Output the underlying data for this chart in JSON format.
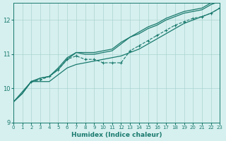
{
  "bg_color": "#d6f0ef",
  "grid_color": "#aad4d0",
  "line_color": "#1a7a6e",
  "xlabel": "Humidex (Indice chaleur)",
  "xlim": [
    0,
    23
  ],
  "ylim": [
    9,
    12.5
  ],
  "yticks": [
    9,
    10,
    11,
    12
  ],
  "xticks": [
    0,
    1,
    2,
    3,
    4,
    5,
    6,
    7,
    8,
    9,
    10,
    11,
    12,
    13,
    14,
    15,
    16,
    17,
    18,
    19,
    20,
    21,
    22,
    23
  ],
  "line_lower": [
    [
      0,
      9.6
    ],
    [
      2,
      10.2
    ],
    [
      3,
      10.2
    ],
    [
      4,
      10.2
    ],
    [
      5,
      10.4
    ],
    [
      6,
      10.6
    ],
    [
      7,
      10.7
    ],
    [
      8,
      10.75
    ],
    [
      9,
      10.8
    ],
    [
      10,
      10.85
    ],
    [
      11,
      10.9
    ],
    [
      12,
      10.95
    ],
    [
      13,
      11.05
    ],
    [
      14,
      11.15
    ],
    [
      15,
      11.3
    ],
    [
      16,
      11.45
    ],
    [
      17,
      11.6
    ],
    [
      18,
      11.75
    ],
    [
      19,
      11.9
    ],
    [
      20,
      12.0
    ],
    [
      21,
      12.1
    ],
    [
      22,
      12.2
    ],
    [
      23,
      12.35
    ]
  ],
  "line_upper1": [
    [
      0,
      9.6
    ],
    [
      1,
      9.85
    ],
    [
      2,
      10.2
    ],
    [
      3,
      10.3
    ],
    [
      4,
      10.35
    ],
    [
      5,
      10.55
    ],
    [
      6,
      10.85
    ],
    [
      7,
      11.05
    ],
    [
      8,
      11.0
    ],
    [
      9,
      11.0
    ],
    [
      10,
      11.05
    ],
    [
      11,
      11.1
    ],
    [
      12,
      11.3
    ],
    [
      13,
      11.5
    ],
    [
      14,
      11.6
    ],
    [
      15,
      11.75
    ],
    [
      16,
      11.85
    ],
    [
      17,
      12.0
    ],
    [
      18,
      12.1
    ],
    [
      19,
      12.2
    ],
    [
      20,
      12.25
    ],
    [
      21,
      12.3
    ],
    [
      22,
      12.45
    ],
    [
      23,
      12.55
    ]
  ],
  "line_upper2": [
    [
      0,
      9.6
    ],
    [
      1,
      9.85
    ],
    [
      2,
      10.2
    ],
    [
      3,
      10.3
    ],
    [
      4,
      10.35
    ],
    [
      5,
      10.6
    ],
    [
      6,
      10.9
    ],
    [
      7,
      11.05
    ],
    [
      8,
      11.05
    ],
    [
      9,
      11.05
    ],
    [
      10,
      11.1
    ],
    [
      11,
      11.15
    ],
    [
      12,
      11.35
    ],
    [
      13,
      11.5
    ],
    [
      14,
      11.65
    ],
    [
      15,
      11.8
    ],
    [
      16,
      11.9
    ],
    [
      17,
      12.05
    ],
    [
      18,
      12.15
    ],
    [
      19,
      12.25
    ],
    [
      20,
      12.3
    ],
    [
      21,
      12.35
    ],
    [
      22,
      12.5
    ],
    [
      23,
      12.55
    ]
  ],
  "line_dotted": [
    [
      2,
      10.2
    ],
    [
      3,
      10.25
    ],
    [
      4,
      10.35
    ],
    [
      5,
      10.55
    ],
    [
      6,
      10.85
    ],
    [
      7,
      10.95
    ],
    [
      8,
      10.85
    ],
    [
      9,
      10.85
    ],
    [
      10,
      10.75
    ],
    [
      11,
      10.75
    ],
    [
      12,
      10.75
    ],
    [
      13,
      11.1
    ],
    [
      14,
      11.25
    ],
    [
      15,
      11.4
    ],
    [
      16,
      11.55
    ],
    [
      17,
      11.7
    ],
    [
      18,
      11.85
    ],
    [
      19,
      11.95
    ],
    [
      20,
      12.05
    ],
    [
      21,
      12.1
    ],
    [
      22,
      12.2
    ],
    [
      23,
      12.35
    ]
  ]
}
